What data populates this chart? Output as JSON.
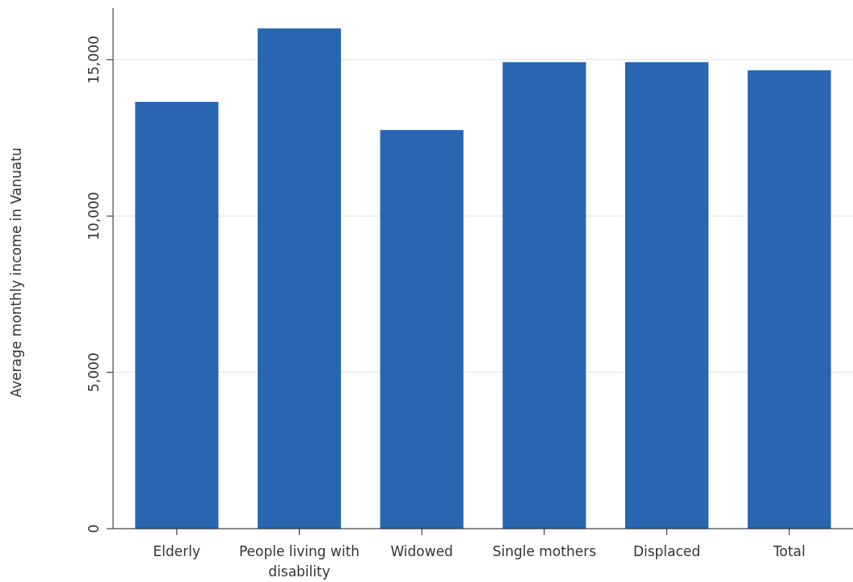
{
  "chart_data": {
    "type": "bar",
    "ylabel": "Average monthly income in Vanuatu",
    "categories": [
      "Elderly",
      "People living with disability",
      "Widowed",
      "Single mothers",
      "Displaced",
      "Total"
    ],
    "values": [
      13650,
      16000,
      12750,
      14920,
      14920,
      14660
    ],
    "color": "#2866b0",
    "ylim": [
      0,
      16650
    ],
    "yticks": [
      0,
      {
        "value": 5000,
        "label": "5,000"
      },
      {
        "value": 10000,
        "label": "10,000"
      },
      {
        "value": 15000,
        "label": "15,000"
      }
    ],
    "grid": "y"
  }
}
